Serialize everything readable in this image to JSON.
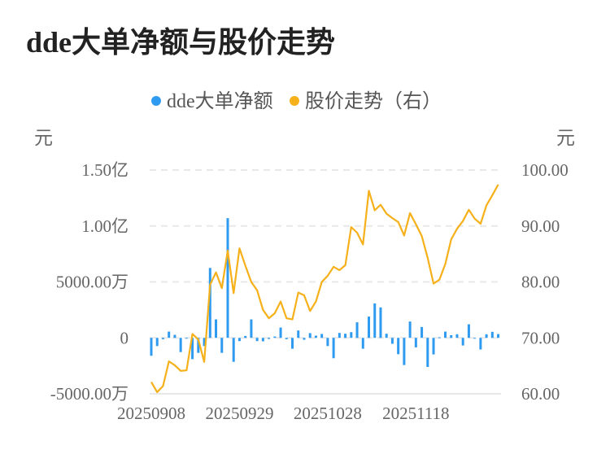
{
  "title": "dde大单净额与股价走势",
  "chart_data": {
    "type": "bar+line",
    "title": "dde大单净额与股价走势",
    "left_unit": "元",
    "right_unit": "元",
    "legend_position": "top-center",
    "grid": true,
    "series": [
      {
        "name": "dde大单净额",
        "type": "bar",
        "axis": "left",
        "color": "#2f9bf0",
        "unit": "万",
        "values": [
          -1600,
          -730,
          -120,
          560,
          270,
          -1270,
          0,
          -1900,
          -1340,
          -730,
          6250,
          1650,
          -1340,
          10700,
          -2140,
          -290,
          170,
          1650,
          -290,
          -310,
          -100,
          120,
          920,
          -120,
          -970,
          660,
          -170,
          420,
          200,
          350,
          -730,
          -1820,
          440,
          370,
          510,
          1390,
          -970,
          1900,
          3080,
          2720,
          370,
          -530,
          -1460,
          -2430,
          1460,
          -850,
          970,
          -2600,
          -1480,
          50,
          560,
          240,
          320,
          -680,
          1210,
          -60,
          -1040,
          320,
          540,
          340
        ]
      },
      {
        "name": "股价走势（右）",
        "type": "line",
        "axis": "right",
        "color": "#f5b01a",
        "values": [
          62.1,
          60.3,
          61.4,
          65.8,
          65.1,
          64.1,
          64.2,
          70.7,
          69.7,
          65.7,
          79.5,
          81.7,
          78.9,
          85.6,
          78.0,
          86.0,
          82.9,
          80.0,
          78.5,
          75.0,
          73.5,
          74.4,
          76.5,
          73.5,
          73.3,
          78.1,
          77.6,
          74.8,
          76.5,
          80.0,
          81.1,
          82.7,
          82.1,
          83.0,
          89.8,
          88.8,
          86.7,
          96.3,
          92.8,
          93.8,
          92.2,
          91.4,
          90.7,
          88.3,
          92.3,
          90.3,
          88.2,
          84.3,
          79.7,
          80.4,
          83.2,
          87.6,
          89.5,
          90.9,
          92.9,
          91.3,
          90.4,
          93.7,
          95.5,
          97.4
        ]
      }
    ],
    "x_ticks": [
      {
        "index": 0,
        "label": "20250908"
      },
      {
        "index": 15,
        "label": "20250929"
      },
      {
        "index": 30,
        "label": "20251028"
      },
      {
        "index": 45,
        "label": "20251118"
      }
    ],
    "left_axis": {
      "range_wan": [
        -5000,
        15000
      ],
      "ticks": [
        {
          "value": 15000,
          "label": "1.50亿"
        },
        {
          "value": 10000,
          "label": "1.00亿"
        },
        {
          "value": 5000,
          "label": "5000.00万"
        },
        {
          "value": 0,
          "label": "0"
        },
        {
          "value": -5000,
          "label": "-5000.00万"
        }
      ]
    },
    "right_axis": {
      "range": [
        60,
        100
      ],
      "ticks": [
        {
          "value": 100,
          "label": "100.00"
        },
        {
          "value": 90,
          "label": "90.00"
        },
        {
          "value": 80,
          "label": "80.00"
        },
        {
          "value": 70,
          "label": "70.00"
        },
        {
          "value": 60,
          "label": "60.00"
        }
      ]
    }
  }
}
